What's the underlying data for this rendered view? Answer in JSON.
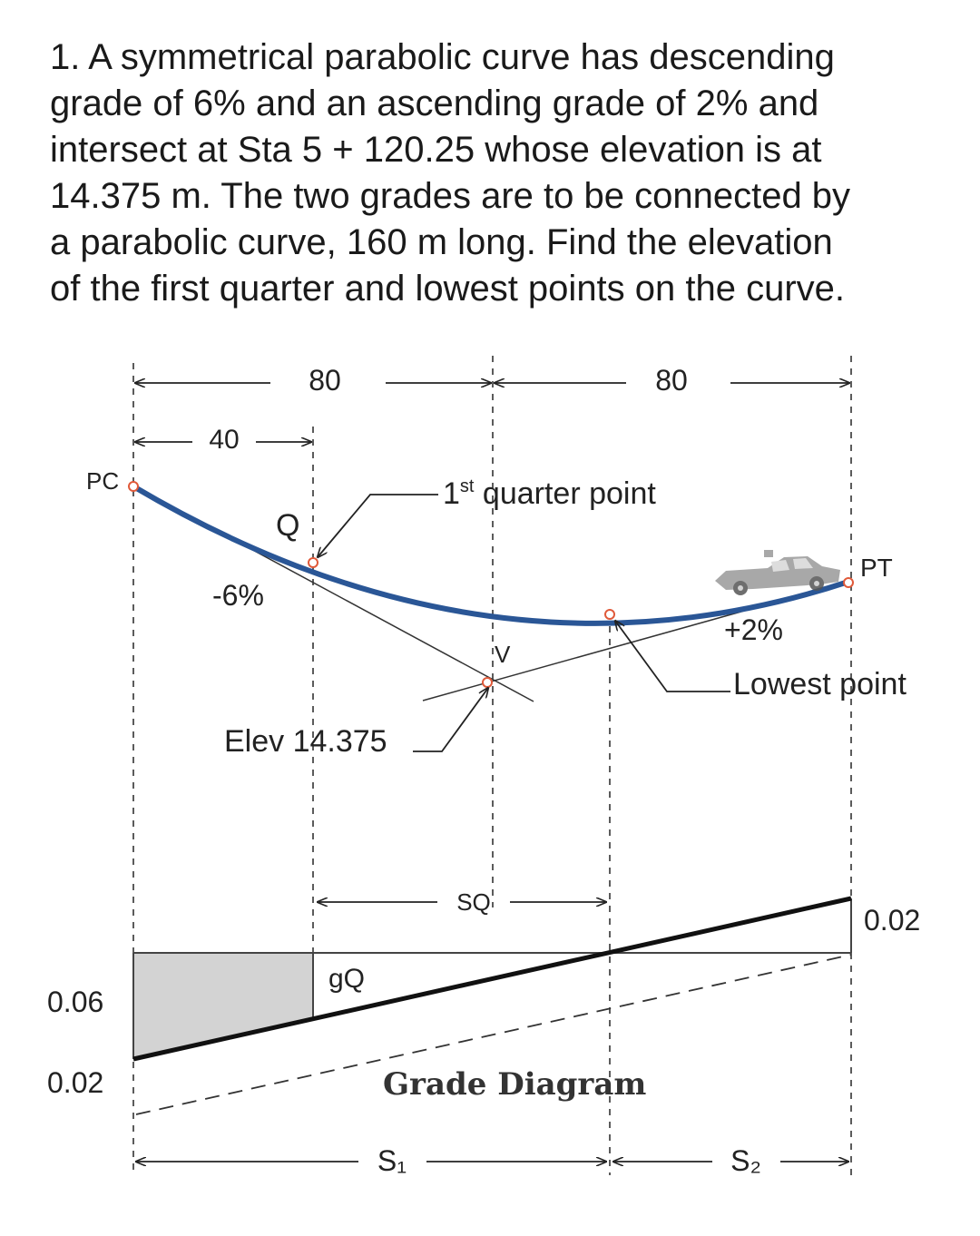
{
  "problem": {
    "lines": [
      "1. A symmetrical parabolic curve has descending",
      "grade of 6% and an ascending grade of 2% and",
      "intersect at Sta 5 + 120.25  whose elevation is at",
      "14.375 m. The two grades are to be connected by",
      "a parabolic curve, 160 m long. Find the elevation",
      "of the first quarter and lowest points on the curve."
    ]
  },
  "diagram": {
    "dim_left": "80",
    "dim_right": "80",
    "dim_quarter": "40",
    "pc": "PC",
    "pt": "PT",
    "q": "Q",
    "v": "V",
    "first_quarter": "1st quarter point",
    "first_quarter_base": "1",
    "first_quarter_sup": "st",
    "first_quarter_rest": " quarter point",
    "grade1": "-6%",
    "grade2": "+2%",
    "lowest_point": "Lowest point",
    "elev": "Elev 14.375",
    "sq": "SQ",
    "gq": "gQ",
    "right_value": "0.02",
    "left_value_top": "0.06",
    "left_value_bottom": "0.02",
    "grade_diagram": "Grade Diagram",
    "s1": "S₁",
    "s2": "S₂"
  },
  "colors": {
    "curve": "#2a5696",
    "point": "#e05a3a",
    "shade": "#d3d3d3"
  },
  "icons": {
    "car": "car-icon"
  }
}
